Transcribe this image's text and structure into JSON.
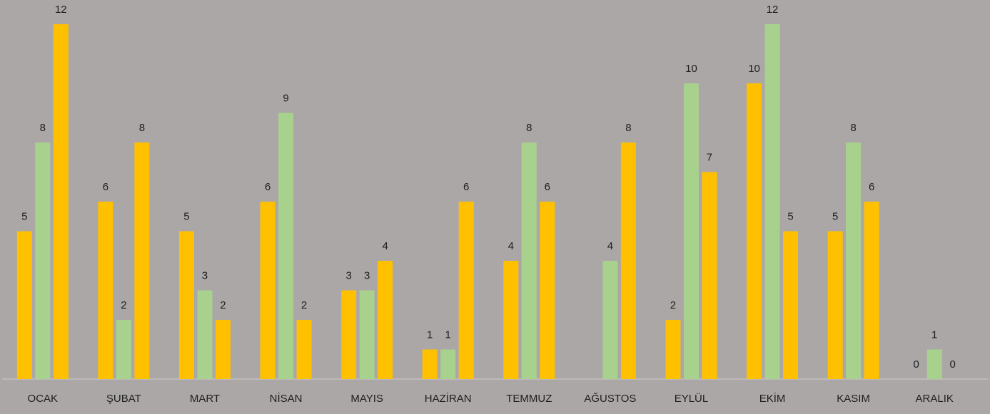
{
  "chart_data": {
    "type": "bar",
    "categories": [
      "OCAK",
      "ŞUBAT",
      "MART",
      "NİSAN",
      "MAYIS",
      "HAZİRAN",
      "TEMMUZ",
      "AĞUSTOS",
      "EYLÜL",
      "EKİM",
      "KASIM",
      "ARALIK"
    ],
    "series": [
      {
        "color": "#FFC000",
        "values": [
          5,
          6,
          5,
          6,
          3,
          1,
          4,
          null,
          2,
          10,
          5,
          0
        ]
      },
      {
        "color": "#A9D18E",
        "values": [
          8,
          2,
          3,
          9,
          3,
          1,
          8,
          4,
          10,
          12,
          8,
          1
        ]
      },
      {
        "color": "#FFC000",
        "values": [
          12,
          8,
          2,
          2,
          4,
          6,
          6,
          8,
          7,
          5,
          6,
          0
        ]
      }
    ],
    "ylim": [
      0,
      12
    ]
  }
}
